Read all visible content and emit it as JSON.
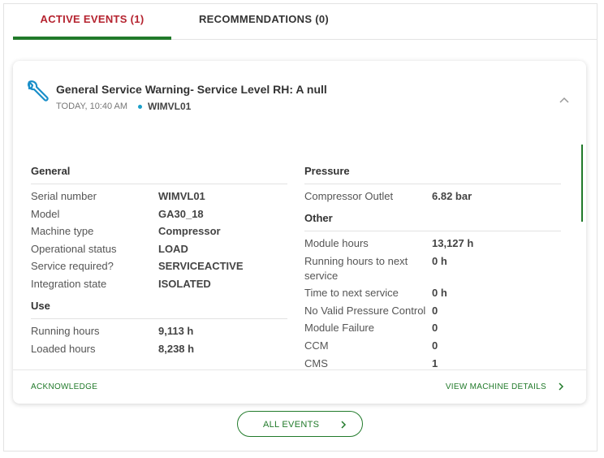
{
  "tabs": [
    {
      "label": "ACTIVE EVENTS (1)"
    },
    {
      "label": "RECOMMENDATIONS (0)"
    }
  ],
  "event": {
    "title": "General Service Warning- Service Level RH: A null",
    "time": "TODAY, 10:40 AM",
    "machine": "WIMVL01"
  },
  "columns": [
    [
      {
        "heading": "General",
        "rows": [
          [
            "Serial number",
            "WIMVL01"
          ],
          [
            "Model",
            "GA30_18"
          ],
          [
            "Machine type",
            "Compressor"
          ],
          [
            "Operational status",
            "LOAD"
          ],
          [
            "Service required?",
            "SERVICEACTIVE"
          ],
          [
            "Integration state",
            "ISOLATED"
          ]
        ]
      },
      {
        "heading": "Use",
        "rows": [
          [
            "Running hours",
            "9,113 h"
          ],
          [
            "Loaded hours",
            "8,238 h"
          ]
        ]
      }
    ],
    [
      {
        "heading": "Pressure",
        "rows": [
          [
            "Compressor Outlet",
            "6.82 bar"
          ]
        ]
      },
      {
        "heading": "Other",
        "rows": [
          [
            "Module hours",
            "13,127 h"
          ],
          [
            "Running hours to next service",
            "0 h"
          ],
          [
            "Time to next service",
            "0 h"
          ],
          [
            "No Valid Pressure Control",
            "0"
          ],
          [
            "Module Failure",
            "0"
          ],
          [
            "CCM",
            "0"
          ],
          [
            "CMS",
            "1"
          ]
        ]
      }
    ]
  ],
  "actions": {
    "acknowledge": "ACKNOWLEDGE",
    "details": "VIEW MACHINE DETAILS"
  },
  "all_events": "ALL EVENTS"
}
